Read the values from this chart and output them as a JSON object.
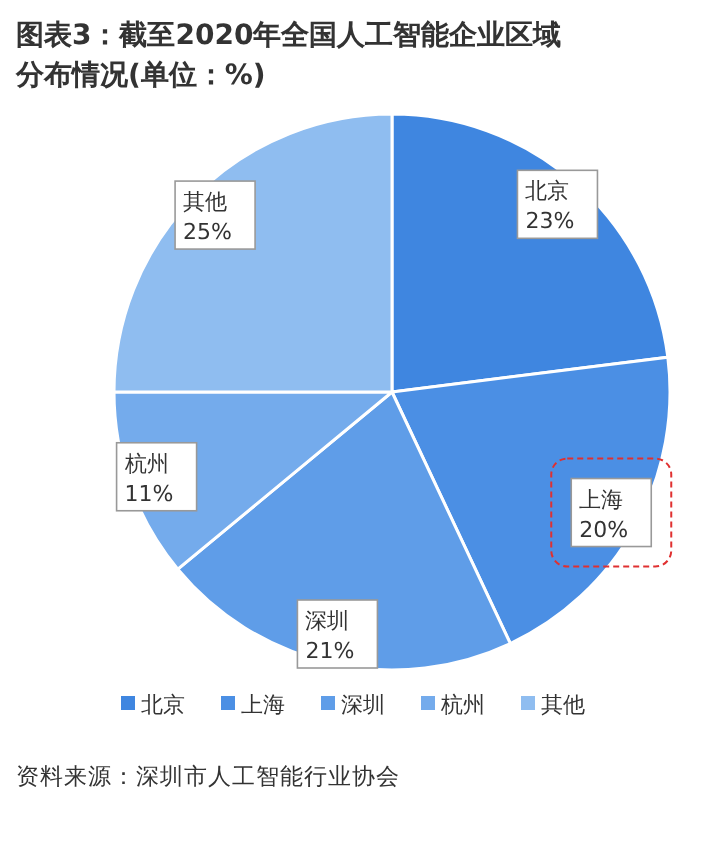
{
  "chart_data": {
    "type": "pie",
    "title": "图表3：截至2020年全国人工智能企业区域分布情况(单位：%)",
    "categories": [
      "北京",
      "上海",
      "深圳",
      "杭州",
      "其他"
    ],
    "values": [
      23,
      20,
      21,
      11,
      25
    ],
    "colors": [
      "#3f86e0",
      "#4b8fe4",
      "#5f9de8",
      "#74abec",
      "#8fbdf0"
    ],
    "value_labels": [
      "23%",
      "20%",
      "21%",
      "11%",
      "25%"
    ],
    "legend": "bottom",
    "annotations": [
      "资料来源：深圳市人工智能行业协会"
    ]
  }
}
